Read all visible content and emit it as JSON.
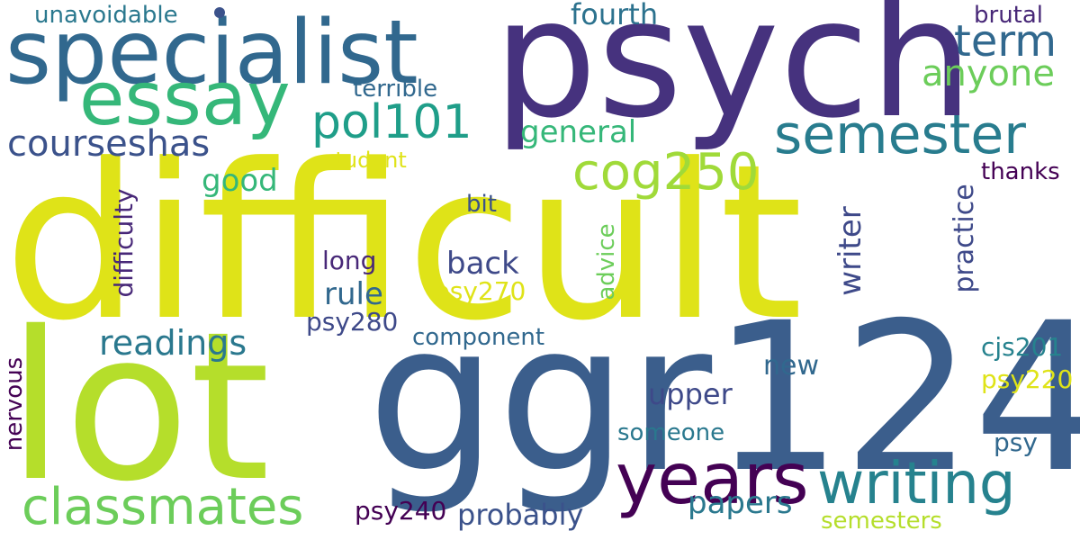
{
  "palette": {
    "yellow": "#dfe318",
    "yellow_green": "#b5de2b",
    "green": "#6ccd5a",
    "teal_green": "#35b779",
    "teal": "#1f9e89",
    "cyan_blue": "#26828e",
    "blue": "#31688e",
    "indigo": "#3e4989",
    "purple": "#482878",
    "dark_purple": "#440154"
  },
  "words": {
    "difficult": "difficult",
    "lot": "lot",
    "ggr124": "ggr124",
    "psych": "psych",
    "specialist": "specialist",
    "essay": "essay",
    "years": "years",
    "writing": "writing",
    "classmates": "classmates",
    "semester": "semester",
    "term": "term",
    "anyone": "anyone",
    "pol101": "pol101",
    "cog250": "cog250",
    "courseshas": "courseshas",
    "readings": "readings",
    "unavoidable": "unavoidable",
    "fourth": "fourth",
    "brutal": "brutal",
    "terrible": "terrible",
    "general": "general",
    "student": "student",
    "good": "good",
    "thanks": "thanks",
    "bit": "bit",
    "difficulty": "difficulty",
    "advice": "advice",
    "writer": "writer",
    "practice": "practice",
    "long": "long",
    "back": "back",
    "rule": "rule",
    "psy270": "psy270",
    "psy280": "psy280",
    "component": "component",
    "new": "new",
    "upper": "upper",
    "cjs201": "cjs201",
    "psy220": "psy220",
    "nervous": "nervous",
    "someone": "someone",
    "psy": "psy",
    "papers": "papers",
    "psy240": "psy240",
    "probably": "probably",
    "semesters": "semesters"
  }
}
